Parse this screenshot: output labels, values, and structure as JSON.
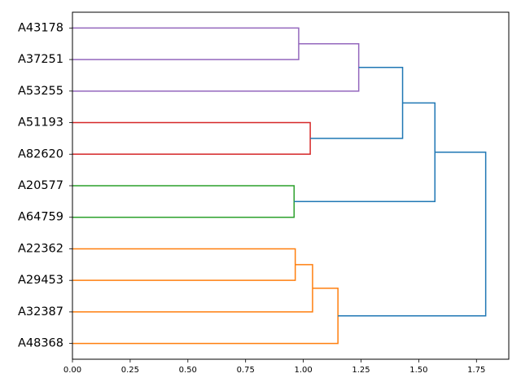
{
  "chart_data": {
    "type": "dendrogram",
    "orientation": "horizontal",
    "title": "",
    "xlabel": "",
    "ylabel": "",
    "xlim": [
      0,
      1.89
    ],
    "xticks": [
      "0.00",
      "0.25",
      "0.50",
      "0.75",
      "1.00",
      "1.25",
      "1.50",
      "1.75"
    ],
    "leaves": [
      "A43178",
      "A37251",
      "A53255",
      "A51193",
      "A82620",
      "A20577",
      "A64759",
      "A22362",
      "A29453",
      "A32387",
      "A48368"
    ],
    "colors": {
      "purple": "#9467bd",
      "red": "#d62728",
      "green": "#2ca02c",
      "orange": "#ff7f0e",
      "above_threshold": "#1f77b4"
    },
    "merges": [
      {
        "id": "m1",
        "left": "A43178",
        "right": "A37251",
        "height": 0.98,
        "color": "purple"
      },
      {
        "id": "m2",
        "left": "m1",
        "right": "A53255",
        "height": 1.24,
        "color": "purple"
      },
      {
        "id": "m3",
        "left": "A51193",
        "right": "A82620",
        "height": 1.03,
        "color": "red"
      },
      {
        "id": "m4",
        "left": "m2",
        "right": "m3",
        "height": 1.43,
        "color": "above_threshold"
      },
      {
        "id": "m5",
        "left": "A20577",
        "right": "A64759",
        "height": 0.96,
        "color": "green"
      },
      {
        "id": "m6",
        "left": "m4",
        "right": "m5",
        "height": 1.57,
        "color": "above_threshold"
      },
      {
        "id": "m7",
        "left": "A22362",
        "right": "A29453",
        "height": 0.965,
        "color": "orange"
      },
      {
        "id": "m8",
        "left": "m7",
        "right": "A32387",
        "height": 1.04,
        "color": "orange"
      },
      {
        "id": "m9",
        "left": "m8",
        "right": "A48368",
        "height": 1.15,
        "color": "orange"
      },
      {
        "id": "m10",
        "left": "m6",
        "right": "m9",
        "height": 1.79,
        "color": "above_threshold"
      }
    ]
  }
}
